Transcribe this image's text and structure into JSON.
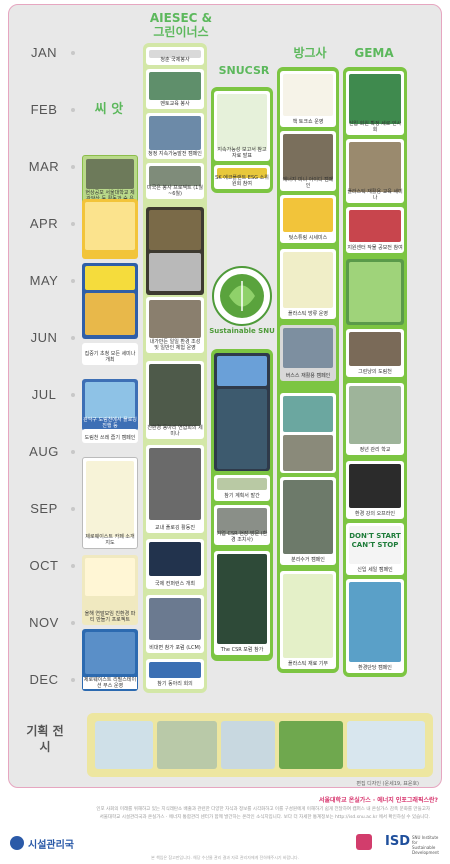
{
  "months": [
    "JAN",
    "FEB",
    "MAR",
    "APR",
    "MAY",
    "JUN",
    "JUL",
    "AUG",
    "SEP",
    "OCT",
    "NOV",
    "DEC"
  ],
  "columns": {
    "ssial": {
      "title": "씨 앗"
    },
    "aiesec": {
      "title": "AIESEC &",
      "subtitle": "그린이너스"
    },
    "snucsr": {
      "title": "SNUCSR"
    },
    "banggeusa": {
      "title": "방그사"
    },
    "gema": {
      "title": "GEMA"
    }
  },
  "logo_caption": "Sustainable SNU",
  "ssial_cards": [
    {
      "caption": "현상공모 서울대학교 제 관악산 등 활동과 숲 유형"
    },
    {
      "caption": ""
    },
    {
      "caption": ""
    },
    {
      "caption": "집중기 초청 모든 세미나 개최"
    },
    {
      "caption": "관악구 도림천에서 플로깅 진행 등"
    },
    {
      "caption": "도림천 쓰레 줍기 캠페인"
    },
    {
      "caption": "제로웨이스트 카페 소개지도"
    },
    {
      "caption": "올해 연말모임 친환경 파티 만들기 프로젝트"
    },
    {
      "caption": "제로웨이스트 리필스테이션 부스 운영"
    }
  ],
  "aiesec_cards": [
    {
      "caption": "청춘 국제봉사"
    },
    {
      "caption": "멘토교육 봉사"
    },
    {
      "caption": "청정 지속가능발전 캠페인"
    },
    {
      "caption": "미국은 봉사 프로젝트 (1월~6월)"
    },
    {
      "caption": ""
    },
    {
      "caption": "내가만든 일일 환경 조성 및 일반인 체험 운영"
    },
    {
      "caption": "친환경 동아리 연합회의 세미나"
    },
    {
      "caption": "교내 플로깅 활동진"
    },
    {
      "caption": "국제 컨퍼런스 개최"
    },
    {
      "caption": "비대면 참가 포럼 (LCM)"
    },
    {
      "caption": "참기 동아리 회의"
    }
  ],
  "snucsr_cards": [
    {
      "caption": "지속가능성 보고서 참고 자료 발표"
    },
    {
      "caption": "SK 에코플랜트 ESG 소위원회 참여"
    },
    {
      "caption": ""
    },
    {
      "caption": "참기 계획서 발간"
    },
    {
      "caption": "기업 CSR 현장 방문 (환경 조치사)"
    },
    {
      "caption": "The CSR 포럼 참가"
    }
  ],
  "bang_cards": [
    {
      "caption": "책 토크쇼 운영"
    },
    {
      "caption": "에너지 미니 아이디 캠페인"
    },
    {
      "caption": "텃스튜링 시세미스"
    },
    {
      "caption": "플라스틱 방류 운영"
    },
    {
      "caption": "버스스 재활용 캠페인"
    },
    {
      "caption": ""
    },
    {
      "caption": "분리수거 캠페인"
    },
    {
      "caption": "플라스틱 재료 기부"
    }
  ],
  "gema_cards": [
    {
      "caption": "신입 회원 확정 세로 인사회"
    },
    {
      "caption": "플라스틱 재활용 교육 세미나"
    },
    {
      "caption": "지원센터 작물 공모전 참여"
    },
    {
      "caption": ""
    },
    {
      "caption": "그린냥의 도림천"
    },
    {
      "caption": "정년 관리 학교"
    },
    {
      "caption": "환경 강의 오프라인"
    },
    {
      "caption": "신입 세일 캠페인"
    },
    {
      "caption": "환경단당 캠페인"
    }
  ],
  "dont_stop": "DON'T START CAN'T STOP",
  "expo_label": "기획 전시",
  "credit": "편집 디자인 (운세19, 표윤호)",
  "footer_question": "서울대학교 온실가스 · 에너지 인포그래픽스란?",
  "footer_paragraphs": [
    "인포 사회의 미래를 위해하고 있는 지식래탄소 배출과 관련한 다양한 자식과 정보를 시각화하고 이를 구성원에게 이해하기 쉽게 전달하여 캠퍼스 내 온실가스 감축 문화를 만들고자",
    "서울대학교 시설관리국과 온실가스 · 에너지 통합관리 센터가 함께 발간하는 온라인 소식지입니다. 보다 더 자세한 통계정보는 http://isd.snu.ac.kr 에서 확인하실 수 있습니다."
  ],
  "logo_left": "시설관리국",
  "logo_right": "ISD",
  "logo_right_sub": "SNU Institute for Sustainable Development",
  "bottom_note": "본 책임은 참고판입니다. 해당 수산물 관리 결과 자료 관리자에게 전하해주시기 바랍니다."
}
